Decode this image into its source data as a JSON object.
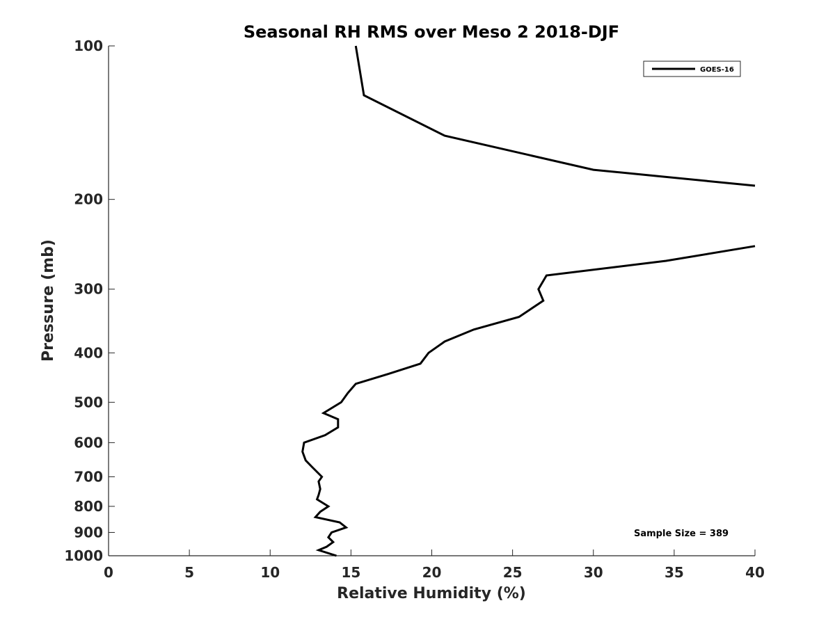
{
  "chart_data": {
    "type": "line",
    "title": "Seasonal RH RMS over Meso 2  2018-DJF",
    "xlabel": "Relative Humidity (%)",
    "ylabel": "Pressure (mb)",
    "xlim": [
      0,
      40
    ],
    "ylim": [
      100,
      1000
    ],
    "y_scale": "log",
    "y_reversed": true,
    "grid": false,
    "legend_position": "top-right",
    "x_ticks": [
      0,
      5,
      10,
      15,
      20,
      25,
      30,
      35,
      40
    ],
    "x_tick_labels": [
      "0",
      "5",
      "10",
      "15",
      "20",
      "25",
      "30",
      "35",
      "40"
    ],
    "y_ticks": [
      100,
      200,
      300,
      400,
      500,
      600,
      700,
      800,
      900,
      1000
    ],
    "y_tick_labels": [
      "100",
      "200",
      "300",
      "400",
      "500",
      "600",
      "700",
      "800",
      "900",
      "1000"
    ],
    "annotation": "Sample Size = 389",
    "series": [
      {
        "name": "GOES-16",
        "color": "#000000",
        "segments": [
          [
            {
              "x": 15.3,
              "p": 100
            },
            {
              "x": 15.8,
              "p": 125
            },
            {
              "x": 20.8,
              "p": 150
            },
            {
              "x": 30.0,
              "p": 175
            },
            {
              "x": 40.0,
              "p": 188
            }
          ],
          [
            {
              "x": 40.0,
              "p": 247
            },
            {
              "x": 34.5,
              "p": 264
            },
            {
              "x": 27.1,
              "p": 282
            },
            {
              "x": 26.6,
              "p": 300
            },
            {
              "x": 26.9,
              "p": 316
            },
            {
              "x": 25.4,
              "p": 340
            },
            {
              "x": 22.6,
              "p": 360
            },
            {
              "x": 20.8,
              "p": 380
            },
            {
              "x": 19.8,
              "p": 400
            },
            {
              "x": 19.3,
              "p": 420
            },
            {
              "x": 17.3,
              "p": 440
            },
            {
              "x": 15.3,
              "p": 460
            },
            {
              "x": 14.8,
              "p": 480
            },
            {
              "x": 14.4,
              "p": 500
            },
            {
              "x": 13.3,
              "p": 525
            },
            {
              "x": 14.2,
              "p": 540
            },
            {
              "x": 14.2,
              "p": 560
            },
            {
              "x": 13.4,
              "p": 580
            },
            {
              "x": 12.1,
              "p": 600
            },
            {
              "x": 12.0,
              "p": 625
            },
            {
              "x": 12.2,
              "p": 650
            },
            {
              "x": 12.6,
              "p": 670
            },
            {
              "x": 13.2,
              "p": 700
            },
            {
              "x": 13.0,
              "p": 715
            },
            {
              "x": 13.1,
              "p": 740
            },
            {
              "x": 13.0,
              "p": 760
            },
            {
              "x": 12.9,
              "p": 775
            },
            {
              "x": 13.6,
              "p": 800
            },
            {
              "x": 13.1,
              "p": 820
            },
            {
              "x": 12.8,
              "p": 840
            },
            {
              "x": 14.3,
              "p": 860
            },
            {
              "x": 14.7,
              "p": 880
            },
            {
              "x": 13.8,
              "p": 900
            },
            {
              "x": 13.6,
              "p": 920
            },
            {
              "x": 13.9,
              "p": 940
            },
            {
              "x": 13.5,
              "p": 960
            },
            {
              "x": 13.0,
              "p": 975
            },
            {
              "x": 14.1,
              "p": 1000
            }
          ]
        ]
      }
    ]
  }
}
